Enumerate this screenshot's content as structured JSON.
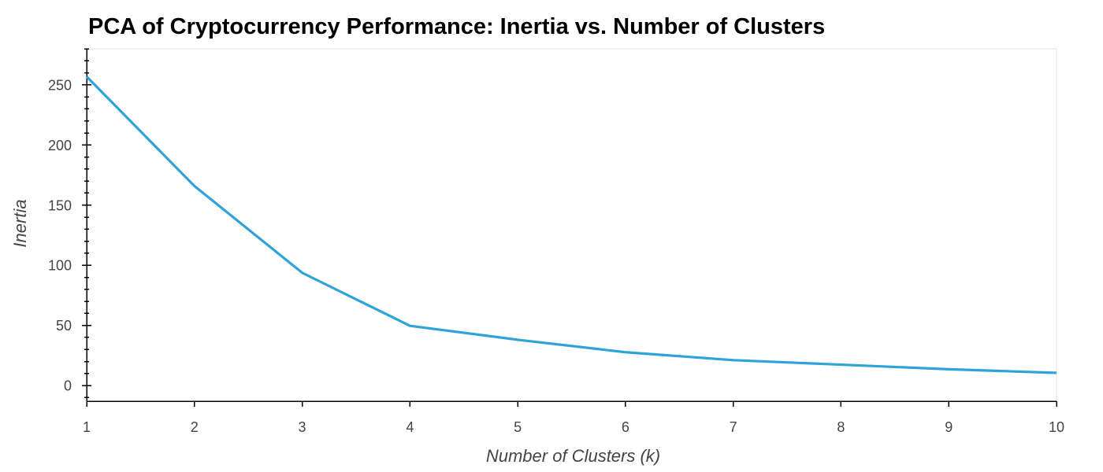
{
  "chart_data": {
    "type": "line",
    "title": "PCA of Cryptocurrency Performance: Inertia vs. Number of Clusters",
    "xlabel": "Number of Clusters (k)",
    "ylabel": "Inertia",
    "x": [
      1,
      2,
      3,
      4,
      5,
      6,
      7,
      8,
      9,
      10
    ],
    "series": [
      {
        "color": "#30a2da",
        "values": [
          256.87,
          165.9,
          93.77,
          49.67,
          38.07,
          27.72,
          21.13,
          17.38,
          13.59,
          10.56
        ]
      }
    ],
    "xlim": [
      1,
      10
    ],
    "ylim": [
      -13,
      280
    ],
    "xticks": [
      1,
      2,
      3,
      4,
      5,
      6,
      7,
      8,
      9,
      10
    ],
    "yticks": [
      0,
      50,
      100,
      150,
      200,
      250
    ],
    "y_minor_step": 10,
    "grid": false,
    "legend": "none"
  }
}
